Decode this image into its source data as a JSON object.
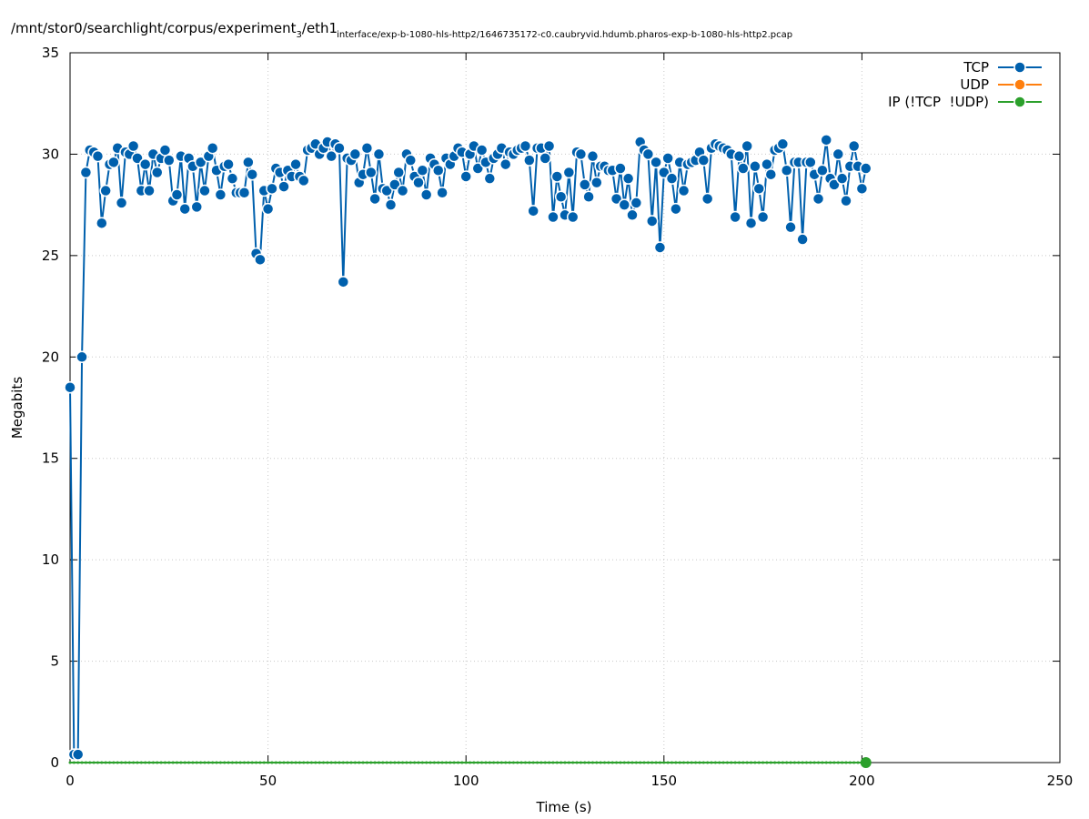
{
  "chart_data": {
    "type": "line",
    "title": [
      "/mnt/stor0/searchlight/corpus/experiment",
      "3",
      "/eth1",
      "interface/exp-b-1080-hls-http2/1646735172-c0.caubryvid.hdumb.pharos-exp-b-1080-hls-http2.pcap"
    ],
    "xlabel": "Time (s)",
    "ylabel": "Megabits",
    "xlim": [
      0,
      250
    ],
    "xticks": [
      0,
      50,
      100,
      150,
      200,
      250
    ],
    "ylim": [
      0,
      35
    ],
    "yticks": [
      0,
      5,
      10,
      15,
      20,
      25,
      30,
      35
    ],
    "grid": true,
    "legend": "top-right",
    "x": [
      0,
      1,
      2,
      3,
      4,
      5,
      6,
      7,
      8,
      9,
      10,
      11,
      12,
      13,
      14,
      15,
      16,
      17,
      18,
      19,
      20,
      21,
      22,
      23,
      24,
      25,
      26,
      27,
      28,
      29,
      30,
      31,
      32,
      33,
      34,
      35,
      36,
      37,
      38,
      39,
      40,
      41,
      42,
      43,
      44,
      45,
      46,
      47,
      48,
      49,
      50,
      51,
      52,
      53,
      54,
      55,
      56,
      57,
      58,
      59,
      60,
      61,
      62,
      63,
      64,
      65,
      66,
      67,
      68,
      69,
      70,
      71,
      72,
      73,
      74,
      75,
      76,
      77,
      78,
      79,
      80,
      81,
      82,
      83,
      84,
      85,
      86,
      87,
      88,
      89,
      90,
      91,
      92,
      93,
      94,
      95,
      96,
      97,
      98,
      99,
      100,
      101,
      102,
      103,
      104,
      105,
      106,
      107,
      108,
      109,
      110,
      111,
      112,
      113,
      114,
      115,
      116,
      117,
      118,
      119,
      120,
      121,
      122,
      123,
      124,
      125,
      126,
      127,
      128,
      129,
      130,
      131,
      132,
      133,
      134,
      135,
      136,
      137,
      138,
      139,
      140,
      141,
      142,
      143,
      144,
      145,
      146,
      147,
      148,
      149,
      150,
      151,
      152,
      153,
      154,
      155,
      156,
      157,
      158,
      159,
      160,
      161,
      162,
      163,
      164,
      165,
      166,
      167,
      168,
      169,
      170,
      171,
      172,
      173,
      174,
      175,
      176,
      177,
      178,
      179,
      180,
      181,
      182,
      183,
      184,
      185,
      186,
      187,
      188,
      189,
      190,
      191,
      192,
      193,
      194,
      195,
      196,
      197,
      198,
      199,
      200,
      201
    ],
    "series": [
      {
        "name": "TCP",
        "color": "#0060ad",
        "values": [
          18.5,
          0.4,
          0.4,
          20.0,
          29.1,
          30.2,
          30.1,
          29.9,
          26.6,
          28.2,
          29.5,
          29.6,
          30.3,
          27.6,
          30.1,
          30.0,
          30.4,
          29.8,
          28.2,
          29.5,
          28.2,
          30.0,
          29.1,
          29.8,
          30.2,
          29.7,
          27.7,
          28.0,
          29.9,
          27.3,
          29.8,
          29.4,
          27.4,
          29.6,
          28.2,
          29.9,
          30.3,
          29.2,
          28.0,
          29.4,
          29.5,
          28.8,
          28.1,
          28.1,
          28.1,
          29.6,
          29.0,
          25.1,
          24.8,
          28.2,
          27.3,
          28.3,
          29.3,
          29.1,
          28.4,
          29.2,
          28.9,
          29.5,
          28.9,
          28.7,
          30.2,
          30.3,
          30.5,
          30.0,
          30.3,
          30.6,
          29.9,
          30.5,
          30.3,
          23.7,
          29.8,
          29.7,
          30.0,
          28.6,
          29.0,
          30.3,
          29.1,
          27.8,
          30.0,
          28.3,
          28.2,
          27.5,
          28.5,
          29.1,
          28.2,
          30.0,
          29.7,
          28.9,
          28.6,
          29.2,
          28.0,
          29.8,
          29.5,
          29.2,
          28.1,
          29.8,
          29.5,
          29.9,
          30.3,
          30.1,
          28.9,
          30.0,
          30.4,
          29.3,
          30.2,
          29.6,
          28.8,
          29.8,
          30.0,
          30.3,
          29.5,
          30.1,
          30.0,
          30.2,
          30.3,
          30.4,
          29.7,
          27.2,
          30.3,
          30.3,
          29.8,
          30.4,
          26.9,
          28.9,
          27.9,
          27.0,
          29.1,
          26.9,
          30.1,
          30.0,
          28.5,
          27.9,
          29.9,
          28.6,
          29.4,
          29.4,
          29.2,
          29.2,
          27.8,
          29.3,
          27.5,
          28.8,
          27.0,
          27.6,
          30.6,
          30.2,
          30.0,
          26.7,
          29.6,
          25.4,
          29.1,
          29.8,
          28.8,
          27.3,
          29.6,
          28.2,
          29.5,
          29.6,
          29.7,
          30.1,
          29.7,
          27.8,
          30.3,
          30.5,
          30.4,
          30.3,
          30.2,
          30.0,
          26.9,
          29.9,
          29.3,
          30.4,
          26.6,
          29.4,
          28.3,
          26.9,
          29.5,
          29.0,
          30.2,
          30.3,
          30.5,
          29.2,
          26.4,
          29.6,
          29.6,
          25.8,
          29.6,
          29.6,
          29.0,
          27.8,
          29.2,
          30.7,
          28.8,
          28.5,
          30.0,
          28.8,
          27.7,
          29.4,
          30.4,
          29.4,
          28.3,
          29.3
        ]
      },
      {
        "name": "UDP",
        "color": "#ff7f0e"
      },
      {
        "name": "IP (!TCP  !UDP)",
        "color": "#2ca02c",
        "values": [
          0,
          0,
          0,
          0,
          0,
          0,
          0,
          0,
          0,
          0,
          0,
          0,
          0,
          0,
          0,
          0,
          0,
          0,
          0,
          0,
          0,
          0,
          0,
          0,
          0,
          0,
          0,
          0,
          0,
          0,
          0,
          0,
          0,
          0,
          0,
          0,
          0,
          0,
          0,
          0,
          0,
          0,
          0,
          0,
          0,
          0,
          0,
          0,
          0,
          0,
          0,
          0,
          0,
          0,
          0,
          0,
          0,
          0,
          0,
          0,
          0,
          0,
          0,
          0,
          0,
          0,
          0,
          0,
          0,
          0,
          0,
          0,
          0,
          0,
          0,
          0,
          0,
          0,
          0,
          0,
          0,
          0,
          0,
          0,
          0,
          0,
          0,
          0,
          0,
          0,
          0,
          0,
          0,
          0,
          0,
          0,
          0,
          0,
          0,
          0,
          0,
          0,
          0,
          0,
          0,
          0,
          0,
          0,
          0,
          0,
          0,
          0,
          0,
          0,
          0,
          0,
          0,
          0,
          0,
          0,
          0,
          0,
          0,
          0,
          0,
          0,
          0,
          0,
          0,
          0,
          0,
          0,
          0,
          0,
          0,
          0,
          0,
          0,
          0,
          0,
          0,
          0,
          0,
          0,
          0,
          0,
          0,
          0,
          0,
          0,
          0,
          0,
          0,
          0,
          0,
          0,
          0,
          0,
          0,
          0,
          0,
          0,
          0,
          0,
          0,
          0,
          0,
          0,
          0,
          0,
          0,
          0,
          0,
          0,
          0,
          0,
          0,
          0,
          0,
          0,
          0,
          0,
          0,
          0,
          0,
          0,
          0,
          0,
          0,
          0,
          0,
          0,
          0,
          0,
          0,
          0,
          0,
          0,
          0,
          0,
          0,
          0
        ]
      }
    ]
  }
}
